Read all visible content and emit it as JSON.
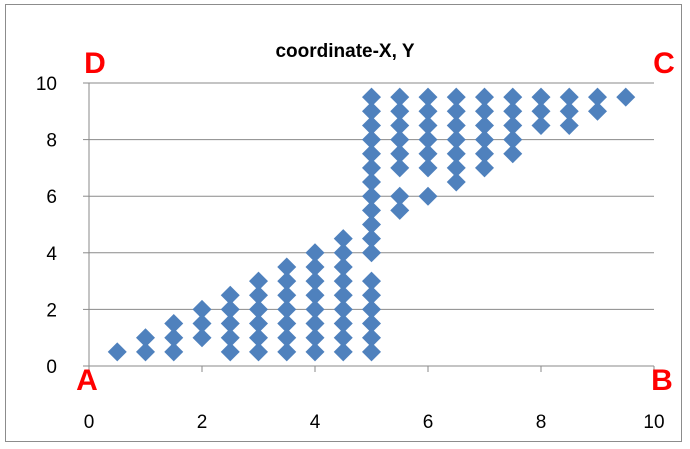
{
  "chart_data": {
    "type": "scatter",
    "title": "coordinate-X, Y",
    "xlabel": "",
    "ylabel": "",
    "xlim": [
      0,
      10
    ],
    "ylim": [
      0,
      10
    ],
    "x_ticks": [
      0,
      2,
      4,
      6,
      8,
      10
    ],
    "y_ticks": [
      0,
      2,
      4,
      6,
      8,
      10
    ],
    "grid": "horizontal",
    "marker": "diamond",
    "color": "#4f81bd",
    "corner_color": "#ff0000",
    "corner_labels": [
      {
        "text": "A",
        "x": 0,
        "y": 0
      },
      {
        "text": "B",
        "x": 10,
        "y": 0
      },
      {
        "text": "C",
        "x": 10,
        "y": 10
      },
      {
        "text": "D",
        "x": 0,
        "y": 10
      }
    ],
    "series": [
      {
        "points": [
          [
            0.5,
            0.5
          ],
          [
            1,
            0.5
          ],
          [
            1,
            1
          ],
          [
            1.5,
            0.5
          ],
          [
            1.5,
            1
          ],
          [
            1.5,
            1.5
          ],
          [
            2,
            1
          ],
          [
            2,
            1.5
          ],
          [
            2,
            2
          ],
          [
            2.5,
            0.5
          ],
          [
            2.5,
            1
          ],
          [
            2.5,
            1.5
          ],
          [
            2.5,
            2
          ],
          [
            2.5,
            2.5
          ],
          [
            3,
            0.5
          ],
          [
            3,
            1
          ],
          [
            3,
            1.5
          ],
          [
            3,
            2
          ],
          [
            3,
            2.5
          ],
          [
            3,
            3
          ],
          [
            3.5,
            0.5
          ],
          [
            3.5,
            1
          ],
          [
            3.5,
            1.5
          ],
          [
            3.5,
            2
          ],
          [
            3.5,
            2.5
          ],
          [
            3.5,
            3
          ],
          [
            3.5,
            3.5
          ],
          [
            4,
            0.5
          ],
          [
            4,
            1
          ],
          [
            4,
            1.5
          ],
          [
            4,
            2
          ],
          [
            4,
            2.5
          ],
          [
            4,
            3
          ],
          [
            4,
            3.5
          ],
          [
            4,
            4
          ],
          [
            4.5,
            0.5
          ],
          [
            4.5,
            1
          ],
          [
            4.5,
            1.5
          ],
          [
            4.5,
            2
          ],
          [
            4.5,
            2.5
          ],
          [
            4.5,
            3
          ],
          [
            4.5,
            3.5
          ],
          [
            4.5,
            4
          ],
          [
            4.5,
            4.5
          ],
          [
            5,
            0.5
          ],
          [
            5,
            1
          ],
          [
            5,
            1.5
          ],
          [
            5,
            2
          ],
          [
            5,
            2.5
          ],
          [
            5,
            3
          ],
          [
            5,
            4
          ],
          [
            5,
            4.5
          ],
          [
            5,
            5
          ],
          [
            5,
            5.5
          ],
          [
            5,
            6
          ],
          [
            5,
            6.5
          ],
          [
            5,
            7
          ],
          [
            5,
            7.5
          ],
          [
            5,
            8
          ],
          [
            5,
            8.5
          ],
          [
            5,
            9
          ],
          [
            5,
            9.5
          ],
          [
            5.5,
            5.5
          ],
          [
            5.5,
            6
          ],
          [
            5.5,
            7
          ],
          [
            5.5,
            7.5
          ],
          [
            5.5,
            8
          ],
          [
            5.5,
            8.5
          ],
          [
            5.5,
            9
          ],
          [
            5.5,
            9.5
          ],
          [
            6,
            6
          ],
          [
            6,
            7
          ],
          [
            6,
            7.5
          ],
          [
            6,
            8
          ],
          [
            6,
            8.5
          ],
          [
            6,
            9
          ],
          [
            6,
            9.5
          ],
          [
            6.5,
            6.5
          ],
          [
            6.5,
            7
          ],
          [
            6.5,
            7.5
          ],
          [
            6.5,
            8
          ],
          [
            6.5,
            8.5
          ],
          [
            6.5,
            9
          ],
          [
            6.5,
            9.5
          ],
          [
            7,
            7
          ],
          [
            7,
            7.5
          ],
          [
            7,
            8
          ],
          [
            7,
            8.5
          ],
          [
            7,
            9
          ],
          [
            7,
            9.5
          ],
          [
            7.5,
            7.5
          ],
          [
            7.5,
            8
          ],
          [
            7.5,
            8.5
          ],
          [
            7.5,
            9
          ],
          [
            7.5,
            9.5
          ],
          [
            8,
            8.5
          ],
          [
            8,
            9
          ],
          [
            8,
            9.5
          ],
          [
            8.5,
            8.5
          ],
          [
            8.5,
            9
          ],
          [
            8.5,
            9.5
          ],
          [
            9,
            9
          ],
          [
            9,
            9.5
          ],
          [
            9.5,
            9.5
          ]
        ]
      }
    ]
  }
}
